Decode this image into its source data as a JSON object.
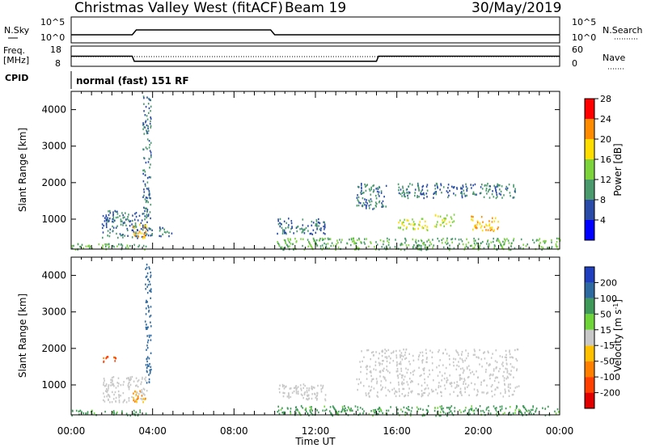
{
  "header": {
    "station": "Christmas Valley West (fitACF)",
    "beam": "Beam 19",
    "date": "30/May/2019",
    "program": "normal (fast) 151 RF"
  },
  "aux_panels": {
    "nsky_label": "N.Sky",
    "nsky_ticks": [
      "10^5",
      "10^0"
    ],
    "nsearch_label": "N.Search",
    "nsearch_ticks": [
      "10^5",
      "10^0"
    ],
    "freq_label_1": "Freq.",
    "freq_label_2": "[MHz]",
    "freq_ticks": [
      "18",
      "8"
    ],
    "nave_label": "Nave",
    "nave_ticks": [
      "60",
      "0"
    ],
    "cpid_label": "CPID"
  },
  "axes": {
    "xlabel": "Time UT",
    "xticks": [
      "00:00",
      "04:00",
      "08:00",
      "12:00",
      "16:00",
      "20:00",
      "00:00"
    ],
    "ylabel": "Slant Range [km]",
    "yticks": [
      "1000",
      "2000",
      "3000",
      "4000"
    ]
  },
  "colorbars": {
    "power": {
      "label": "Power [dB]",
      "ticks": [
        "4",
        "8",
        "12",
        "16",
        "20",
        "24",
        "28"
      ],
      "colors": [
        "#0000ff",
        "#2a4ca8",
        "#4a9a6e",
        "#7cd33c",
        "#ffdd00",
        "#ff8c00",
        "#ff0000"
      ]
    },
    "velocity": {
      "label": "Velocity [m s",
      "label_sup": "-1",
      "label_end": "]",
      "ticks": [
        "200",
        "100",
        "50",
        "15",
        "-15",
        "-50",
        "-100",
        "-200"
      ],
      "colors": [
        "#1f3fbf",
        "#2e6aa0",
        "#3f9a5a",
        "#6fd43a",
        "#c8c8c8",
        "#ffc000",
        "#ff8000",
        "#ff4000",
        "#e00000"
      ]
    }
  },
  "chart_data": [
    {
      "type": "line",
      "name": "freq",
      "x": [
        0,
        3.0,
        3.1,
        15.0,
        15.1,
        24
      ],
      "y": [
        13.0,
        13.0,
        10.5,
        10.5,
        13.0,
        13.0
      ],
      "ylim": [
        8,
        18
      ]
    },
    {
      "type": "heatmap",
      "name": "power",
      "xlim": [
        0,
        24
      ],
      "ylim": [
        180,
        4500
      ],
      "regions": [
        {
          "t0": 0.0,
          "t1": 3.7,
          "r0": 180,
          "r1": 350,
          "value": 12
        },
        {
          "t0": 1.5,
          "t1": 3.7,
          "r0": 500,
          "r1": 1250,
          "value": 8
        },
        {
          "t0": 3.0,
          "t1": 3.7,
          "r0": 500,
          "r1": 900,
          "value": 20
        },
        {
          "t0": 3.5,
          "t1": 3.9,
          "r0": 900,
          "r1": 4400,
          "value": 8
        },
        {
          "t0": 3.7,
          "t1": 5.0,
          "r0": 550,
          "r1": 800,
          "value": 8
        },
        {
          "t0": 10.1,
          "t1": 24.0,
          "r0": 180,
          "r1": 500,
          "value": 12
        },
        {
          "t0": 10.1,
          "t1": 12.5,
          "r0": 600,
          "r1": 1050,
          "value": 8
        },
        {
          "t0": 14.0,
          "t1": 15.5,
          "r0": 1300,
          "r1": 2000,
          "value": 8
        },
        {
          "t0": 16.0,
          "t1": 17.5,
          "r0": 700,
          "r1": 1050,
          "value": 16
        },
        {
          "t0": 17.8,
          "t1": 18.8,
          "r0": 800,
          "r1": 1150,
          "value": 16
        },
        {
          "t0": 19.6,
          "t1": 21.0,
          "r0": 700,
          "r1": 1100,
          "value": 20
        },
        {
          "t0": 16.0,
          "t1": 21.8,
          "r0": 1600,
          "r1": 2000,
          "value": 8
        }
      ]
    },
    {
      "type": "heatmap",
      "name": "velocity",
      "xlim": [
        0,
        24
      ],
      "ylim": [
        180,
        4500
      ],
      "regions": [
        {
          "t0": 0.0,
          "t1": 3.7,
          "r0": 180,
          "r1": 330,
          "value": 40
        },
        {
          "t0": 10.1,
          "t1": 24.0,
          "r0": 180,
          "r1": 450,
          "value": 40
        },
        {
          "t0": 1.5,
          "t1": 3.7,
          "r0": 550,
          "r1": 1250,
          "value": 0
        },
        {
          "t0": 3.0,
          "t1": 3.7,
          "r0": 550,
          "r1": 900,
          "value": -30
        },
        {
          "t0": 1.5,
          "t1": 2.2,
          "r0": 1650,
          "r1": 1800,
          "value": -70
        },
        {
          "t0": 10.1,
          "t1": 12.5,
          "r0": 600,
          "r1": 1050,
          "value": 0
        },
        {
          "t0": 14.0,
          "t1": 22.0,
          "r0": 700,
          "r1": 2000,
          "value": 0
        },
        {
          "t0": 3.6,
          "t1": 3.9,
          "r0": 1000,
          "r1": 4400,
          "value": 120
        }
      ]
    }
  ]
}
